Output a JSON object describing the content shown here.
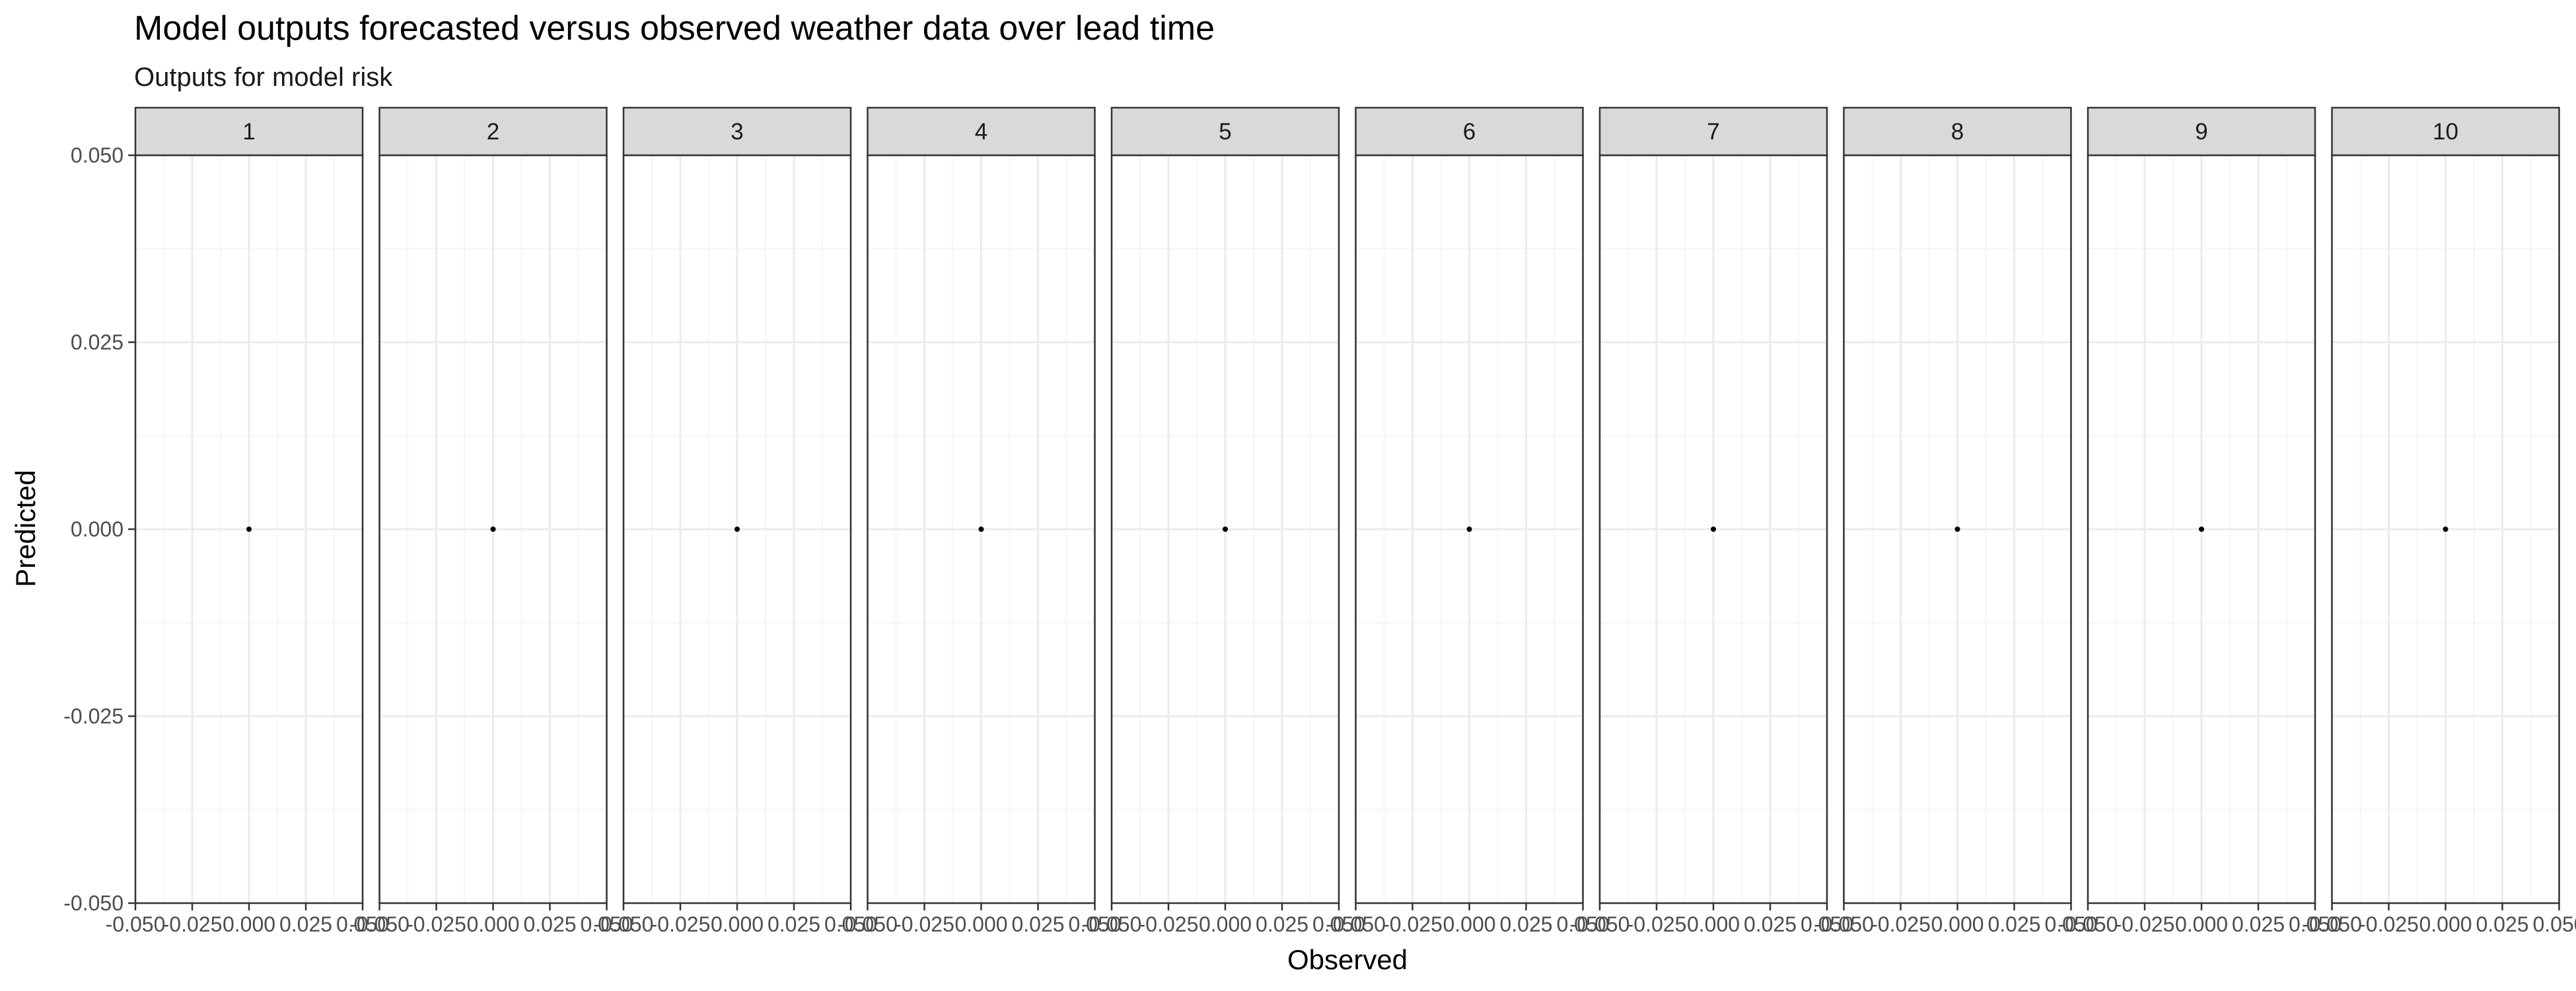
{
  "chart_data": {
    "type": "scatter",
    "title": "Model outputs forecasted versus observed weather data over lead time",
    "subtitle": "Outputs for model risk",
    "xlabel": "Observed",
    "ylabel": "Predicted",
    "facets": [
      "1",
      "2",
      "3",
      "4",
      "5",
      "6",
      "7",
      "8",
      "9",
      "10"
    ],
    "xlim": [
      -0.05,
      0.05
    ],
    "ylim": [
      -0.05,
      0.05
    ],
    "x_ticks": [
      "-0.050",
      "-0.025",
      "0.000",
      "0.025",
      "0.050"
    ],
    "y_ticks": [
      "-0.050",
      "-0.025",
      "0.000",
      "0.025",
      "0.050"
    ],
    "grid": true,
    "points": [
      {
        "facet": "1",
        "x": 0.0,
        "y": 0.0
      },
      {
        "facet": "2",
        "x": 0.0,
        "y": 0.0
      },
      {
        "facet": "3",
        "x": 0.0,
        "y": 0.0
      },
      {
        "facet": "4",
        "x": 0.0,
        "y": 0.0
      },
      {
        "facet": "5",
        "x": 0.0,
        "y": 0.0
      },
      {
        "facet": "6",
        "x": 0.0,
        "y": 0.0
      },
      {
        "facet": "7",
        "x": 0.0,
        "y": 0.0
      },
      {
        "facet": "8",
        "x": 0.0,
        "y": 0.0
      },
      {
        "facet": "9",
        "x": 0.0,
        "y": 0.0
      },
      {
        "facet": "10",
        "x": 0.0,
        "y": 0.0
      }
    ]
  },
  "colors": {
    "strip_fill": "#d9d9d9",
    "panel_border": "#333333",
    "grid_major": "#ebebeb",
    "grid_minor": "#f5f5f5",
    "point": "#000000"
  }
}
